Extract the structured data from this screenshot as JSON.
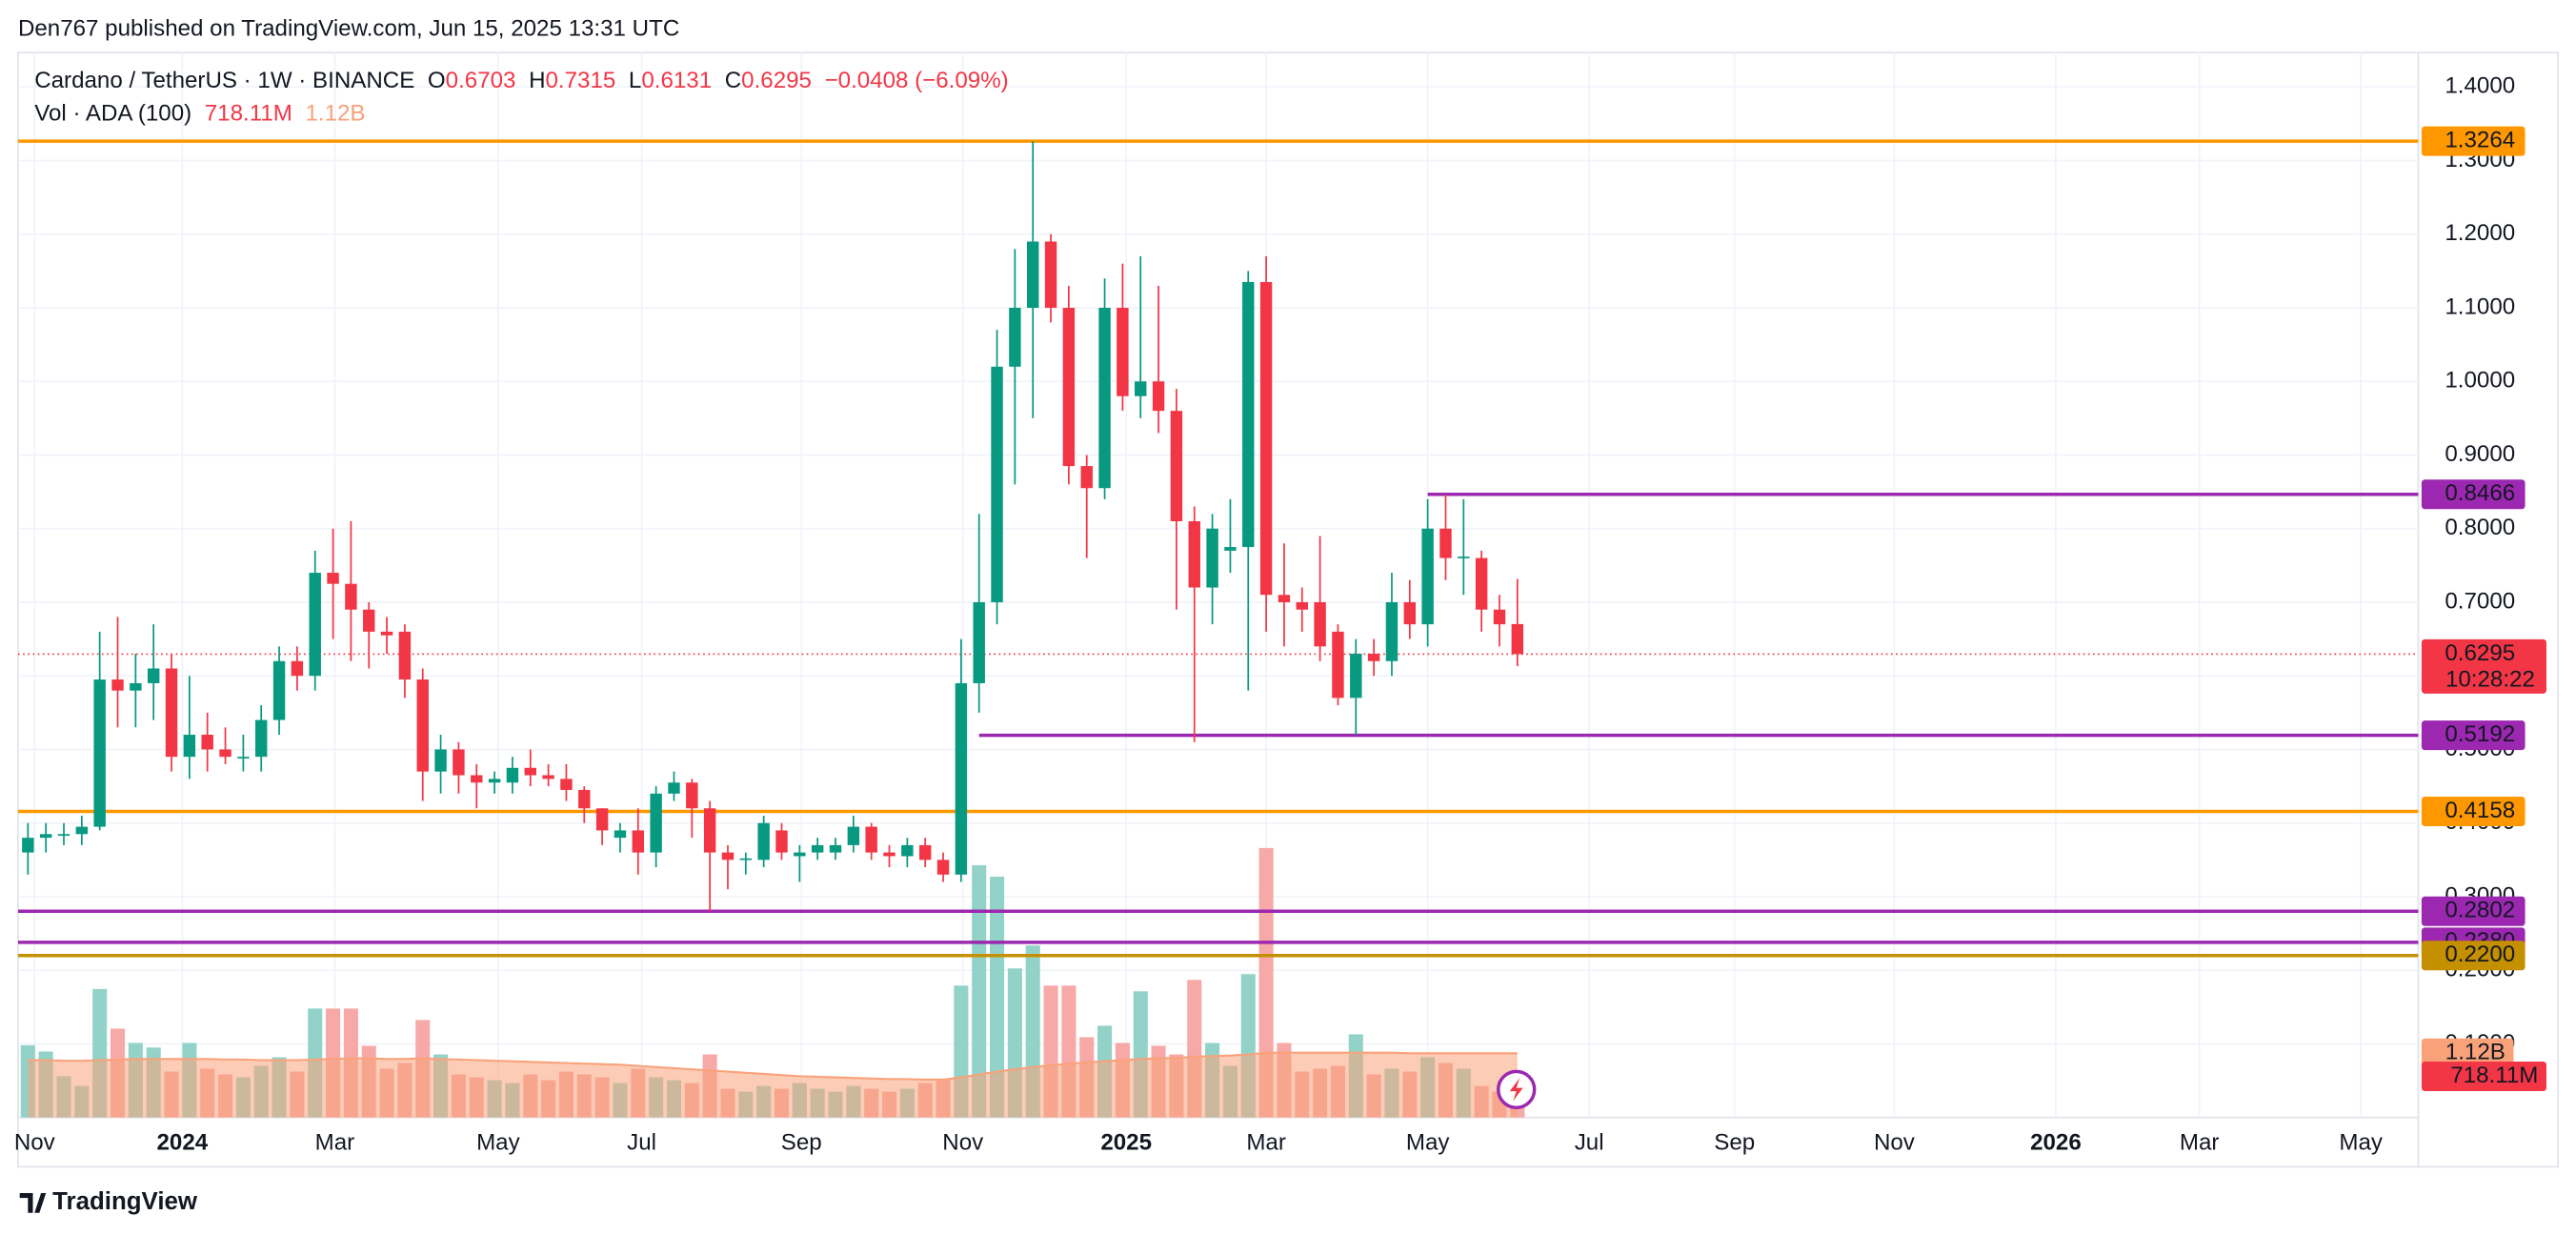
{
  "header": {
    "published": "Den767 published on TradingView.com, Jun 15, 2025 13:31 UTC"
  },
  "legend": {
    "symbol": "Cardano / TetherUS · 1W · BINANCE",
    "ohlc": [
      {
        "label": "O",
        "value": "0.6703"
      },
      {
        "label": "H",
        "value": "0.7315"
      },
      {
        "label": "L",
        "value": "0.6131"
      },
      {
        "label": "C",
        "value": "0.6295"
      }
    ],
    "change": "−0.0408 (−6.09%)",
    "volume_title": "Vol · ADA (100)",
    "volume_value": "718.11M",
    "volume_ma": "1.12B"
  },
  "footer": {
    "brand": "TradingView"
  },
  "chart_data": {
    "type": "candlestick",
    "xlim": [
      -0.55,
      133.2
    ],
    "ylim": [
      0,
      1.44
    ],
    "xticks": [
      {
        "value": 0.37,
        "label": "Nov"
      },
      {
        "value": 8.6,
        "label": "2024"
      },
      {
        "value": 17.1,
        "label": "Mar"
      },
      {
        "value": 26.2,
        "label": "May"
      },
      {
        "value": 34.2,
        "label": "Jul"
      },
      {
        "value": 43.1,
        "label": "Sep"
      },
      {
        "value": 52.1,
        "label": "Nov"
      },
      {
        "value": 61.2,
        "label": "2025"
      },
      {
        "value": 69.0,
        "label": "Mar"
      },
      {
        "value": 78.0,
        "label": "May"
      },
      {
        "value": 87.0,
        "label": "Jul"
      },
      {
        "value": 95.1,
        "label": "Sep"
      },
      {
        "value": 104.0,
        "label": "Nov"
      },
      {
        "value": 113.0,
        "label": "2026"
      },
      {
        "value": 121.0,
        "label": "Mar"
      },
      {
        "value": 130.0,
        "label": "May"
      }
    ],
    "yticks": [
      {
        "value": 0.1,
        "label": "0.1000"
      },
      {
        "value": 0.2,
        "label": "0.2000"
      },
      {
        "value": 0.3,
        "label": "0.3000"
      },
      {
        "value": 0.4,
        "label": "0.4000"
      },
      {
        "value": 0.5,
        "label": "0.5000"
      },
      {
        "value": 0.6,
        "label": "0.6000"
      },
      {
        "value": 0.7,
        "label": "0.7000"
      },
      {
        "value": 0.8,
        "label": "0.8000"
      },
      {
        "value": 0.9,
        "label": "0.9000"
      },
      {
        "value": 1.0,
        "label": "1.0000"
      },
      {
        "value": 1.1,
        "label": "1.1000"
      },
      {
        "value": 1.2,
        "label": "1.2000"
      },
      {
        "value": 1.3,
        "label": "1.3000"
      },
      {
        "value": 1.4,
        "label": "1.4000"
      }
    ],
    "grid": true,
    "up_color": "#089981",
    "down_color": "#f23645",
    "x": [
      0,
      1,
      2,
      3,
      4,
      5,
      6,
      7,
      8,
      9,
      10,
      11,
      12,
      13,
      14,
      15,
      16,
      17,
      18,
      19,
      20,
      21,
      22,
      23,
      24,
      25,
      26,
      27,
      28,
      29,
      30,
      31,
      32,
      33,
      34,
      35,
      36,
      37,
      38,
      39,
      40,
      41,
      42,
      43,
      44,
      45,
      46,
      47,
      48,
      49,
      50,
      51,
      52,
      53,
      54,
      55,
      56,
      57,
      58,
      59,
      60,
      61,
      62,
      63,
      64,
      65,
      66,
      67,
      68,
      69,
      70,
      71,
      72,
      73,
      74,
      75,
      76,
      77,
      78,
      79,
      80,
      81,
      82,
      83
    ],
    "open": [
      0.36,
      0.38,
      0.385,
      0.385,
      0.395,
      0.595,
      0.58,
      0.59,
      0.61,
      0.49,
      0.52,
      0.5,
      0.49,
      0.49,
      0.54,
      0.62,
      0.6,
      0.74,
      0.725,
      0.69,
      0.66,
      0.66,
      0.595,
      0.47,
      0.5,
      0.465,
      0.455,
      0.455,
      0.475,
      0.465,
      0.46,
      0.445,
      0.42,
      0.38,
      0.39,
      0.36,
      0.44,
      0.455,
      0.42,
      0.36,
      0.35,
      0.35,
      0.39,
      0.355,
      0.36,
      0.36,
      0.37,
      0.395,
      0.36,
      0.355,
      0.37,
      0.35,
      0.33,
      0.59,
      0.7,
      1.02,
      1.1,
      1.19,
      1.1,
      0.885,
      0.855,
      1.1,
      0.98,
      1.0,
      0.96,
      0.81,
      0.72,
      0.77,
      0.775,
      1.135,
      0.71,
      0.7,
      0.7,
      0.66,
      0.57,
      0.63,
      0.62,
      0.7,
      0.67,
      0.8,
      0.76,
      0.76,
      0.69,
      0.6703
    ],
    "high": [
      0.4,
      0.4,
      0.4,
      0.41,
      0.66,
      0.68,
      0.63,
      0.67,
      0.63,
      0.6,
      0.55,
      0.53,
      0.52,
      0.56,
      0.64,
      0.64,
      0.77,
      0.8,
      0.81,
      0.7,
      0.68,
      0.67,
      0.61,
      0.52,
      0.51,
      0.48,
      0.47,
      0.49,
      0.5,
      0.48,
      0.48,
      0.45,
      0.42,
      0.4,
      0.42,
      0.45,
      0.47,
      0.46,
      0.43,
      0.37,
      0.36,
      0.41,
      0.4,
      0.37,
      0.38,
      0.38,
      0.41,
      0.4,
      0.37,
      0.38,
      0.38,
      0.36,
      0.65,
      0.82,
      1.07,
      1.18,
      1.3264,
      1.2,
      1.13,
      0.9,
      1.14,
      1.16,
      1.17,
      1.13,
      0.99,
      0.83,
      0.82,
      0.84,
      1.15,
      1.17,
      0.78,
      0.72,
      0.79,
      0.67,
      0.65,
      0.65,
      0.74,
      0.73,
      0.84,
      0.8466,
      0.84,
      0.77,
      0.71,
      0.7315
    ],
    "low": [
      0.33,
      0.36,
      0.37,
      0.37,
      0.39,
      0.53,
      0.53,
      0.54,
      0.47,
      0.46,
      0.47,
      0.48,
      0.47,
      0.47,
      0.52,
      0.58,
      0.58,
      0.65,
      0.62,
      0.61,
      0.63,
      0.57,
      0.43,
      0.44,
      0.44,
      0.42,
      0.44,
      0.44,
      0.45,
      0.45,
      0.43,
      0.4,
      0.37,
      0.36,
      0.33,
      0.34,
      0.43,
      0.38,
      0.28,
      0.31,
      0.33,
      0.34,
      0.35,
      0.32,
      0.35,
      0.35,
      0.36,
      0.35,
      0.34,
      0.34,
      0.34,
      0.32,
      0.32,
      0.55,
      0.67,
      0.86,
      0.95,
      1.08,
      0.86,
      0.76,
      0.84,
      0.96,
      0.95,
      0.93,
      0.69,
      0.51,
      0.67,
      0.74,
      0.58,
      0.66,
      0.64,
      0.66,
      0.62,
      0.56,
      0.52,
      0.6,
      0.6,
      0.65,
      0.64,
      0.73,
      0.71,
      0.66,
      0.64,
      0.6131
    ],
    "close": [
      0.38,
      0.385,
      0.385,
      0.395,
      0.595,
      0.58,
      0.59,
      0.61,
      0.49,
      0.52,
      0.5,
      0.49,
      0.49,
      0.54,
      0.62,
      0.6,
      0.74,
      0.725,
      0.69,
      0.66,
      0.655,
      0.595,
      0.47,
      0.5,
      0.465,
      0.455,
      0.46,
      0.475,
      0.465,
      0.46,
      0.445,
      0.42,
      0.39,
      0.39,
      0.36,
      0.44,
      0.455,
      0.42,
      0.36,
      0.35,
      0.352,
      0.4,
      0.36,
      0.36,
      0.37,
      0.37,
      0.395,
      0.36,
      0.355,
      0.37,
      0.35,
      0.33,
      0.59,
      0.7,
      1.02,
      1.1,
      1.19,
      1.1,
      0.885,
      0.855,
      1.1,
      0.98,
      1.0,
      0.96,
      0.81,
      0.72,
      0.8,
      0.775,
      1.135,
      0.71,
      0.7,
      0.69,
      0.64,
      0.57,
      0.63,
      0.62,
      0.7,
      0.67,
      0.8,
      0.76,
      0.762,
      0.69,
      0.67,
      0.6295
    ],
    "volume": [
      1.26,
      1.15,
      0.72,
      0.55,
      2.24,
      1.55,
      1.3,
      1.22,
      0.8,
      1.3,
      0.85,
      0.75,
      0.7,
      0.9,
      1.05,
      0.8,
      1.9,
      1.9,
      1.9,
      1.25,
      0.85,
      0.95,
      1.7,
      1.1,
      0.75,
      0.7,
      0.65,
      0.6,
      0.75,
      0.65,
      0.8,
      0.75,
      0.7,
      0.6,
      0.85,
      0.7,
      0.65,
      0.6,
      1.1,
      0.5,
      0.45,
      0.55,
      0.5,
      0.6,
      0.5,
      0.45,
      0.55,
      0.5,
      0.45,
      0.5,
      0.6,
      0.65,
      2.3,
      4.4,
      4.2,
      2.6,
      3.0,
      2.3,
      2.3,
      1.4,
      1.6,
      1.3,
      2.2,
      1.25,
      1.1,
      2.4,
      1.3,
      0.9,
      2.5,
      4.7,
      1.3,
      0.8,
      0.85,
      0.9,
      1.45,
      0.75,
      0.85,
      0.8,
      1.05,
      0.95,
      0.85,
      0.55,
      0.45,
      0.71811
    ],
    "volume_ma": [
      1.0,
      1.0,
      0.99,
      0.99,
      1.0,
      1.01,
      1.02,
      1.02,
      1.02,
      1.02,
      1.02,
      1.01,
      1.01,
      1.0,
      1.0,
      1.0,
      1.01,
      1.02,
      1.03,
      1.03,
      1.02,
      1.02,
      1.03,
      1.02,
      1.01,
      1.0,
      0.99,
      0.98,
      0.97,
      0.96,
      0.95,
      0.94,
      0.93,
      0.92,
      0.9,
      0.88,
      0.86,
      0.84,
      0.82,
      0.8,
      0.78,
      0.76,
      0.74,
      0.72,
      0.71,
      0.7,
      0.69,
      0.68,
      0.67,
      0.67,
      0.66,
      0.66,
      0.7,
      0.75,
      0.8,
      0.84,
      0.88,
      0.91,
      0.94,
      0.96,
      0.98,
      1.0,
      1.02,
      1.03,
      1.04,
      1.06,
      1.07,
      1.08,
      1.1,
      1.13,
      1.13,
      1.13,
      1.13,
      1.13,
      1.13,
      1.13,
      1.13,
      1.12,
      1.12,
      1.12,
      1.12,
      1.12,
      1.12,
      1.12
    ],
    "volume_up_color": "#92d2c8",
    "volume_down_color": "#f7a9a7",
    "volume_ma_color": "#f9a27a",
    "levels": [
      {
        "value": 1.3264,
        "label": "1.3264",
        "color": "#ff9800"
      },
      {
        "value": 0.8466,
        "label": "0.8466",
        "color": "#9c27b0",
        "x_start": 78
      },
      {
        "value": 0.5192,
        "label": "0.5192",
        "color": "#9c27b0",
        "x_start": 53
      },
      {
        "value": 0.4158,
        "label": "0.4158",
        "color": "#ff9800"
      },
      {
        "value": 0.2802,
        "label": "0.2802",
        "color": "#9c27b0"
      },
      {
        "value": 0.238,
        "label": "0.2380",
        "color": "#9c27b0"
      },
      {
        "value": 0.22,
        "label": "0.2200",
        "color": "#c49000"
      }
    ],
    "last_price": {
      "value": 0.6295,
      "label": "0.6295",
      "countdown": "10:28:22",
      "color": "#f23645"
    }
  }
}
